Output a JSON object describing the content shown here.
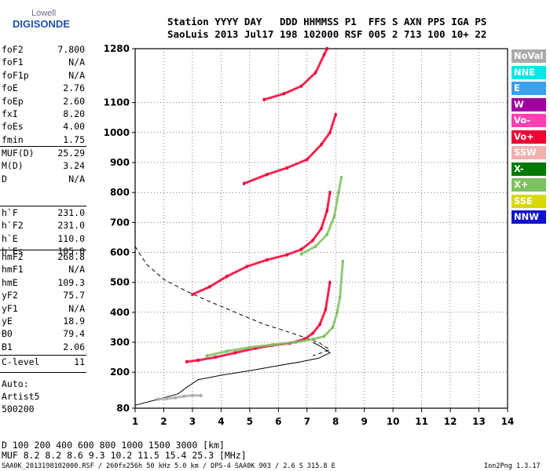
{
  "logo": {
    "line1": "Lowell",
    "line2": "DIGISONDE"
  },
  "header": {
    "row1": "Station YYYY DAY   DDD HHMMSS P1  FFS S AXN PPS IGA PS",
    "row2": "SaoLuis 2013 Jul17 198 102000 RSF 005 2 713 100 10+ 22"
  },
  "params_group1": [
    {
      "label": "foF2",
      "value": "7.800"
    },
    {
      "label": "foF1",
      "value": "N/A"
    },
    {
      "label": "foF1p",
      "value": "N/A"
    },
    {
      "label": "foE",
      "value": "2.76"
    },
    {
      "label": "foEp",
      "value": "2.60"
    },
    {
      "label": "fxI",
      "value": "8.20"
    },
    {
      "label": "foEs",
      "value": "4.00"
    },
    {
      "label": "fmin",
      "value": "1.75"
    }
  ],
  "params_group2": [
    {
      "label": "MUF(D)",
      "value": "25.29"
    },
    {
      "label": "M(D)",
      "value": "3.24"
    },
    {
      "label": "D",
      "value": "N/A"
    }
  ],
  "params_group3": [
    {
      "label": "h`F",
      "value": "231.0"
    },
    {
      "label": "h`F2",
      "value": "231.0"
    },
    {
      "label": "h`E",
      "value": "110.0"
    },
    {
      "label": "h`Es",
      "value": "105.0"
    }
  ],
  "params_group4": [
    {
      "label": "hmF2",
      "value": "268.8"
    },
    {
      "label": "hmF1",
      "value": "N/A"
    },
    {
      "label": "hmE",
      "value": "109.3"
    },
    {
      "label": "yF2",
      "value": "75.7"
    },
    {
      "label": "yF1",
      "value": "N/A"
    },
    {
      "label": "yE",
      "value": "18.9"
    },
    {
      "label": "B0",
      "value": "79.4"
    },
    {
      "label": "B1",
      "value": "2.06"
    }
  ],
  "params_group5": [
    {
      "label": "C-level",
      "value": "11"
    }
  ],
  "autoscale": {
    "line1": "Auto:",
    "line2": "Artist5",
    "line3": "500200"
  },
  "legend": [
    {
      "label": "NoVal",
      "color": "#aaaaaa"
    },
    {
      "label": "NNE",
      "color": "#00e6e6"
    },
    {
      "label": "E",
      "color": "#3aa0f0"
    },
    {
      "label": "W",
      "color": "#a000a0"
    },
    {
      "label": "Vo-",
      "color": "#ff40b0"
    },
    {
      "label": "Vo+",
      "color": "#ee0033"
    },
    {
      "label": "SSW",
      "color": "#f0b0b0"
    },
    {
      "label": "X-",
      "color": "#007a00"
    },
    {
      "label": "X+",
      "color": "#7fc060"
    },
    {
      "label": "SSE",
      "color": "#d8d800"
    },
    {
      "label": "NNW",
      "color": "#1010d0"
    }
  ],
  "footer": {
    "d_row": "D    100  200  400  600  800 1000 1500 3000 [km]",
    "muf_row": "MUF  8.2  8.2  8.6  9.3 10.2 11.5 15.4 25.3 [MHz]",
    "file_info": "SAA0K_2013198102000.RSF / 260fx256h 50 kHz 5.0 km / DPS-4 SAA0K 903 / 2.6 S 315.8 E",
    "version": "Ion2Png 1.3.17"
  },
  "chart_data": {
    "type": "scatter",
    "xlim": [
      1,
      14
    ],
    "ylim": [
      80,
      1280
    ],
    "x_ticks": [
      1,
      2,
      3,
      4,
      5,
      6,
      7,
      8,
      9,
      10,
      11,
      12,
      13,
      14
    ],
    "y_ticks": [
      80,
      200,
      300,
      400,
      500,
      600,
      700,
      800,
      900,
      1000,
      1100,
      1280
    ],
    "grid": true,
    "traces": [
      {
        "name": "O-trace F2",
        "color": "#ee0033",
        "points": [
          [
            2.8,
            235
          ],
          [
            3.2,
            240
          ],
          [
            3.8,
            250
          ],
          [
            4.5,
            265
          ],
          [
            5.2,
            280
          ],
          [
            5.8,
            290
          ],
          [
            6.4,
            297
          ],
          [
            6.9,
            310
          ],
          [
            7.2,
            330
          ],
          [
            7.45,
            360
          ],
          [
            7.65,
            410
          ],
          [
            7.8,
            500
          ]
        ]
      },
      {
        "name": "X-trace F2",
        "color": "#7fc060",
        "points": [
          [
            3.5,
            255
          ],
          [
            4.2,
            270
          ],
          [
            5.0,
            283
          ],
          [
            5.8,
            292
          ],
          [
            6.6,
            300
          ],
          [
            7.2,
            310
          ],
          [
            7.6,
            320
          ],
          [
            7.9,
            350
          ],
          [
            8.05,
            400
          ],
          [
            8.15,
            450
          ],
          [
            8.25,
            570
          ]
        ]
      },
      {
        "name": "O-trace 2nd hop",
        "color": "#ee0033",
        "points": [
          [
            3.0,
            460
          ],
          [
            3.6,
            485
          ],
          [
            4.2,
            520
          ],
          [
            4.9,
            553
          ],
          [
            5.6,
            575
          ],
          [
            6.3,
            592
          ],
          [
            6.8,
            610
          ],
          [
            7.2,
            640
          ],
          [
            7.5,
            680
          ],
          [
            7.7,
            740
          ],
          [
            7.8,
            800
          ]
        ]
      },
      {
        "name": "X-trace 2nd hop",
        "color": "#7fc060",
        "points": [
          [
            6.8,
            595
          ],
          [
            7.3,
            620
          ],
          [
            7.7,
            660
          ],
          [
            7.95,
            720
          ],
          [
            8.1,
            800
          ],
          [
            8.2,
            850
          ]
        ]
      },
      {
        "name": "3rd hop",
        "color": "#ee0033",
        "points": [
          [
            4.8,
            830
          ],
          [
            5.6,
            860
          ],
          [
            6.3,
            882
          ],
          [
            7.0,
            910
          ],
          [
            7.5,
            960
          ],
          [
            7.8,
            1000
          ],
          [
            8.0,
            1060
          ]
        ]
      },
      {
        "name": "4th hop",
        "color": "#ee0033",
        "points": [
          [
            5.5,
            1110
          ],
          [
            6.2,
            1130
          ],
          [
            6.8,
            1155
          ],
          [
            7.3,
            1200
          ],
          [
            7.6,
            1260
          ],
          [
            7.7,
            1280
          ]
        ]
      },
      {
        "name": "E / Es layer",
        "color": "#aaaaaa",
        "points": [
          [
            1.8,
            110
          ],
          [
            2.1,
            112
          ],
          [
            2.4,
            115
          ],
          [
            2.7,
            120
          ],
          [
            3.0,
            123
          ],
          [
            3.3,
            122
          ]
        ]
      }
    ],
    "profile_solid": [
      [
        1.0,
        90
      ],
      [
        1.8,
        110
      ],
      [
        2.5,
        128
      ],
      [
        2.8,
        150
      ],
      [
        3.2,
        175
      ],
      [
        4.0,
        190
      ],
      [
        5.0,
        205
      ],
      [
        6.0,
        222
      ],
      [
        6.8,
        235
      ],
      [
        7.4,
        247
      ],
      [
        7.8,
        265
      ],
      [
        7.5,
        285
      ],
      [
        7.2,
        300
      ]
    ],
    "profile_dashed": [
      [
        1.0,
        620
      ],
      [
        1.4,
        560
      ],
      [
        2.0,
        510
      ],
      [
        2.8,
        470
      ],
      [
        3.5,
        440
      ],
      [
        4.5,
        400
      ],
      [
        5.5,
        360
      ],
      [
        6.5,
        330
      ],
      [
        7.4,
        300
      ],
      [
        7.8,
        275
      ],
      [
        7.2,
        255
      ]
    ]
  }
}
